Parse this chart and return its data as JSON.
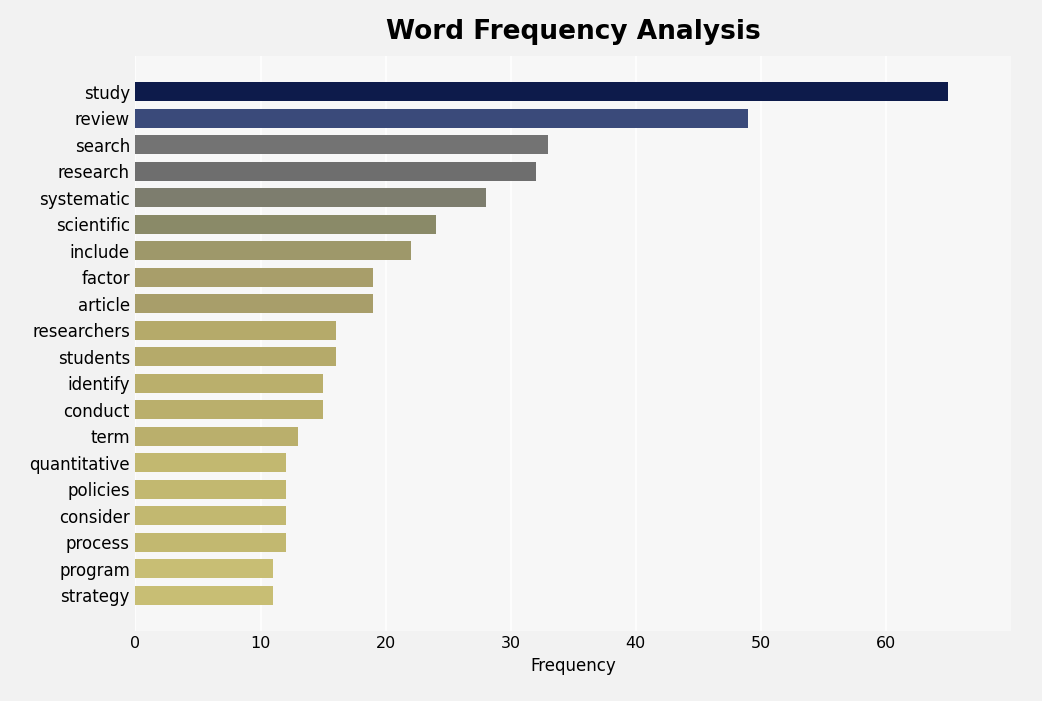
{
  "title": "Word Frequency Analysis",
  "xlabel": "Frequency",
  "categories": [
    "study",
    "review",
    "search",
    "research",
    "systematic",
    "scientific",
    "include",
    "factor",
    "article",
    "researchers",
    "students",
    "identify",
    "conduct",
    "term",
    "quantitative",
    "policies",
    "consider",
    "process",
    "program",
    "strategy"
  ],
  "values": [
    65,
    49,
    33,
    32,
    28,
    24,
    22,
    19,
    19,
    16,
    16,
    15,
    15,
    13,
    12,
    12,
    12,
    12,
    11,
    11
  ],
  "colors": [
    "#0d1b4b",
    "#3a4a7a",
    "#737373",
    "#6e6e6e",
    "#7d7d6e",
    "#8a8a68",
    "#9e986a",
    "#a89e6a",
    "#a89e6a",
    "#b5aa6a",
    "#b5aa6a",
    "#baaf6c",
    "#baaf6c",
    "#baaf6c",
    "#c2b870",
    "#c2b870",
    "#c2b870",
    "#c2b870",
    "#c8be74",
    "#c8be74"
  ],
  "background_color": "#f2f2f2",
  "plot_background": "#f7f7f7",
  "xlim": [
    0,
    70
  ],
  "xticks": [
    0,
    10,
    20,
    30,
    40,
    50,
    60
  ],
  "title_fontsize": 19,
  "label_fontsize": 12,
  "tick_fontsize": 11.5
}
